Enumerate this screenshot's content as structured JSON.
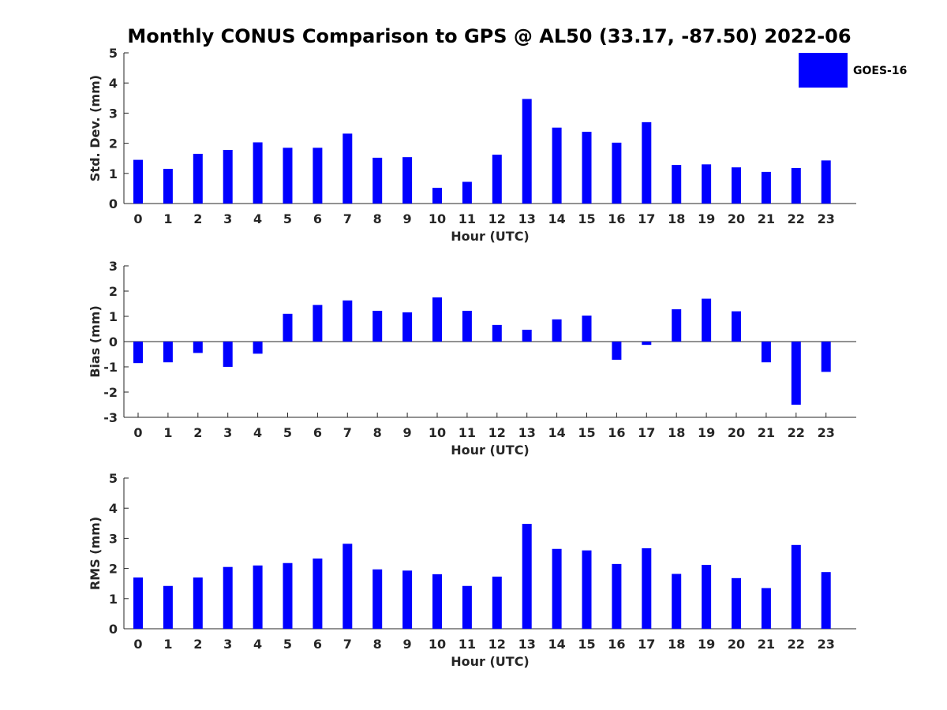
{
  "title": "Monthly CONUS Comparison to GPS @ AL50 (33.17, -87.50) 2022-06",
  "legend": {
    "label": "GOES-16",
    "color": "#0000ff",
    "placement": "top-right"
  },
  "chart_data": [
    {
      "type": "bar",
      "xlabel": "Hour (UTC)",
      "ylabel": "Std. Dev. (mm)",
      "ylim": [
        0,
        5
      ],
      "yticks": [
        0,
        1,
        2,
        3,
        4,
        5
      ],
      "categories": [
        "0",
        "1",
        "2",
        "3",
        "4",
        "5",
        "6",
        "7",
        "8",
        "9",
        "10",
        "11",
        "12",
        "13",
        "14",
        "15",
        "16",
        "17",
        "18",
        "19",
        "20",
        "21",
        "22",
        "23"
      ],
      "series": [
        {
          "name": "GOES-16",
          "color": "#0000ff",
          "values": [
            1.45,
            1.15,
            1.65,
            1.78,
            2.03,
            1.85,
            1.85,
            2.32,
            1.52,
            1.54,
            0.52,
            0.72,
            1.62,
            3.47,
            2.52,
            2.38,
            2.02,
            2.7,
            1.28,
            1.3,
            1.2,
            1.05,
            1.18,
            1.43
          ]
        }
      ]
    },
    {
      "type": "bar",
      "xlabel": "Hour (UTC)",
      "ylabel": "Bias (mm)",
      "ylim": [
        -3,
        3
      ],
      "yticks": [
        -3,
        -2,
        -1,
        0,
        1,
        2,
        3
      ],
      "categories": [
        "0",
        "1",
        "2",
        "3",
        "4",
        "5",
        "6",
        "7",
        "8",
        "9",
        "10",
        "11",
        "12",
        "13",
        "14",
        "15",
        "16",
        "17",
        "18",
        "19",
        "20",
        "21",
        "22",
        "23"
      ],
      "series": [
        {
          "name": "GOES-16",
          "color": "#0000ff",
          "values": [
            -0.85,
            -0.82,
            -0.45,
            -1.0,
            -0.48,
            1.1,
            1.45,
            1.63,
            1.22,
            1.16,
            1.75,
            1.22,
            0.66,
            0.47,
            0.88,
            1.03,
            -0.72,
            -0.13,
            1.28,
            1.7,
            1.2,
            -0.82,
            -2.5,
            -1.2
          ]
        }
      ]
    },
    {
      "type": "bar",
      "xlabel": "Hour (UTC)",
      "ylabel": "RMS (mm)",
      "ylim": [
        0,
        5
      ],
      "yticks": [
        0,
        1,
        2,
        3,
        4,
        5
      ],
      "categories": [
        "0",
        "1",
        "2",
        "3",
        "4",
        "5",
        "6",
        "7",
        "8",
        "9",
        "10",
        "11",
        "12",
        "13",
        "14",
        "15",
        "16",
        "17",
        "18",
        "19",
        "20",
        "21",
        "22",
        "23"
      ],
      "series": [
        {
          "name": "GOES-16",
          "color": "#0000ff",
          "values": [
            1.7,
            1.42,
            1.7,
            2.05,
            2.1,
            2.18,
            2.33,
            2.82,
            1.97,
            1.93,
            1.81,
            1.42,
            1.73,
            3.48,
            2.65,
            2.6,
            2.15,
            2.67,
            1.82,
            2.12,
            1.68,
            1.35,
            2.78,
            1.88
          ]
        }
      ]
    }
  ]
}
